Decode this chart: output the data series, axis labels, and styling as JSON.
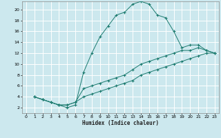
{
  "xlabel": "Humidex (Indice chaleur)",
  "bg_color": "#cce8ee",
  "grid_color": "#ffffff",
  "line_color": "#1a7a6e",
  "xlim": [
    -0.5,
    23.5
  ],
  "ylim": [
    1.0,
    21.5
  ],
  "xticks": [
    0,
    1,
    2,
    3,
    4,
    5,
    6,
    7,
    8,
    9,
    10,
    11,
    12,
    13,
    14,
    15,
    16,
    17,
    18,
    19,
    20,
    21,
    22,
    23
  ],
  "yticks": [
    2,
    4,
    6,
    8,
    10,
    12,
    14,
    16,
    18,
    20
  ],
  "series1_x": [
    1,
    2,
    3,
    4,
    5,
    6,
    7,
    8,
    9,
    10,
    11,
    12,
    13,
    14,
    15,
    16,
    17,
    18,
    19,
    20,
    21,
    22,
    23
  ],
  "series1_y": [
    4,
    3.5,
    3,
    2.5,
    2,
    2.5,
    8.5,
    12,
    15,
    17,
    19,
    19.5,
    21,
    21.5,
    21,
    19,
    18.5,
    16,
    13,
    13.5,
    13.5,
    12.5,
    12
  ],
  "series2_x": [
    1,
    2,
    3,
    4,
    5,
    6,
    7,
    8,
    9,
    10,
    11,
    12,
    13,
    14,
    15,
    16,
    17,
    18,
    19,
    20,
    21,
    22,
    23
  ],
  "series2_y": [
    4,
    3.5,
    3,
    2.5,
    2.5,
    3,
    5.5,
    6,
    6.5,
    7,
    7.5,
    8,
    9,
    10,
    10.5,
    11,
    11.5,
    12,
    12.5,
    12.5,
    13,
    12.5,
    12
  ],
  "series3_x": [
    1,
    2,
    3,
    4,
    5,
    6,
    7,
    8,
    9,
    10,
    11,
    12,
    13,
    14,
    15,
    16,
    17,
    18,
    19,
    20,
    21,
    22,
    23
  ],
  "series3_y": [
    4,
    3.5,
    3,
    2.5,
    2.5,
    3,
    4,
    4.5,
    5,
    5.5,
    6,
    6.5,
    7,
    8,
    8.5,
    9,
    9.5,
    10,
    10.5,
    11,
    11.5,
    12,
    12
  ]
}
